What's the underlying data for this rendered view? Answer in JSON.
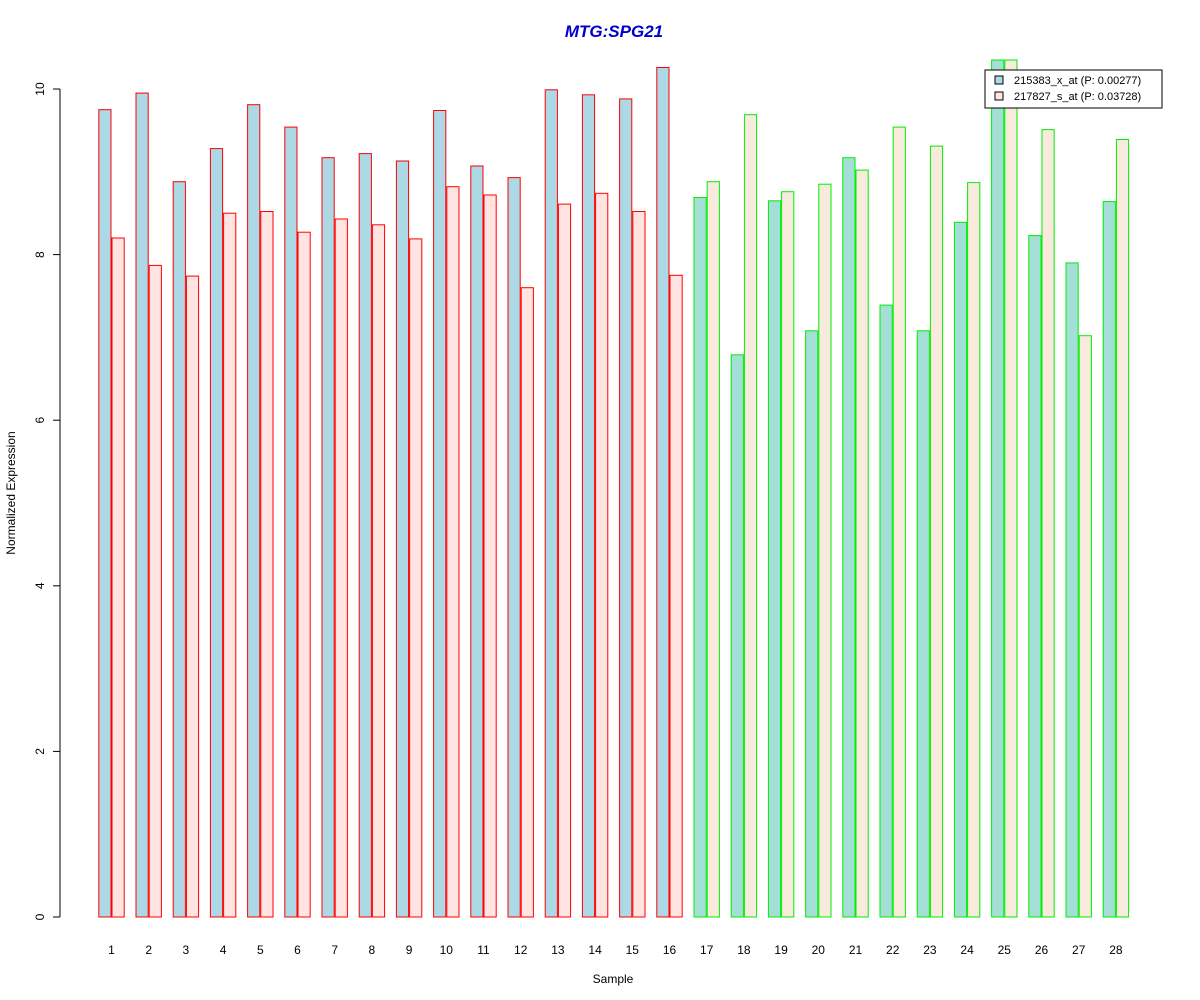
{
  "chart_data": {
    "type": "bar",
    "title": "MTG:SPG21",
    "xlabel": "Sample",
    "ylabel": "Normalized Expression",
    "ylim": [
      0,
      10
    ],
    "yticks": [
      "0",
      "2",
      "4",
      "6",
      "8",
      "10"
    ],
    "categories": [
      "1",
      "2",
      "3",
      "4",
      "5",
      "6",
      "7",
      "8",
      "9",
      "10",
      "11",
      "12",
      "13",
      "14",
      "15",
      "16",
      "17",
      "18",
      "19",
      "20",
      "21",
      "22",
      "23",
      "24",
      "25",
      "26",
      "27",
      "28"
    ],
    "series": [
      {
        "name": "215383_x_at (P: 0.00277)",
        "values": [
          9.75,
          9.95,
          8.88,
          9.28,
          9.81,
          9.54,
          9.17,
          9.22,
          9.13,
          9.74,
          9.07,
          8.93,
          9.99,
          9.93,
          9.88,
          10.26,
          8.69,
          6.79,
          8.65,
          7.08,
          9.17,
          7.39,
          7.08,
          8.39,
          10.35,
          8.23,
          7.9,
          8.64
        ]
      },
      {
        "name": "217827_s_at (P: 0.03728)",
        "values": [
          8.2,
          7.87,
          7.74,
          8.5,
          8.52,
          8.27,
          8.43,
          8.36,
          8.19,
          8.82,
          8.72,
          7.6,
          8.61,
          8.74,
          8.52,
          7.75,
          8.88,
          9.69,
          8.76,
          8.85,
          9.02,
          9.54,
          9.31,
          8.87,
          10.35,
          9.51,
          7.02,
          9.39
        ]
      }
    ],
    "groups": [
      {
        "samples": "1-16",
        "border_color": "#ff0000"
      },
      {
        "samples": "17-28",
        "border_color": "#00ee00"
      }
    ],
    "colors": {
      "title": "#0000cc",
      "series_fill": [
        "#add8e6",
        "#ffe4e1"
      ],
      "legend_fill": [
        "#add8e6",
        "#ffe4e1"
      ],
      "group2_fill": [
        "#a3dfd6",
        "#f8ebde"
      ]
    },
    "grid": false,
    "legend_position": "top-right"
  }
}
